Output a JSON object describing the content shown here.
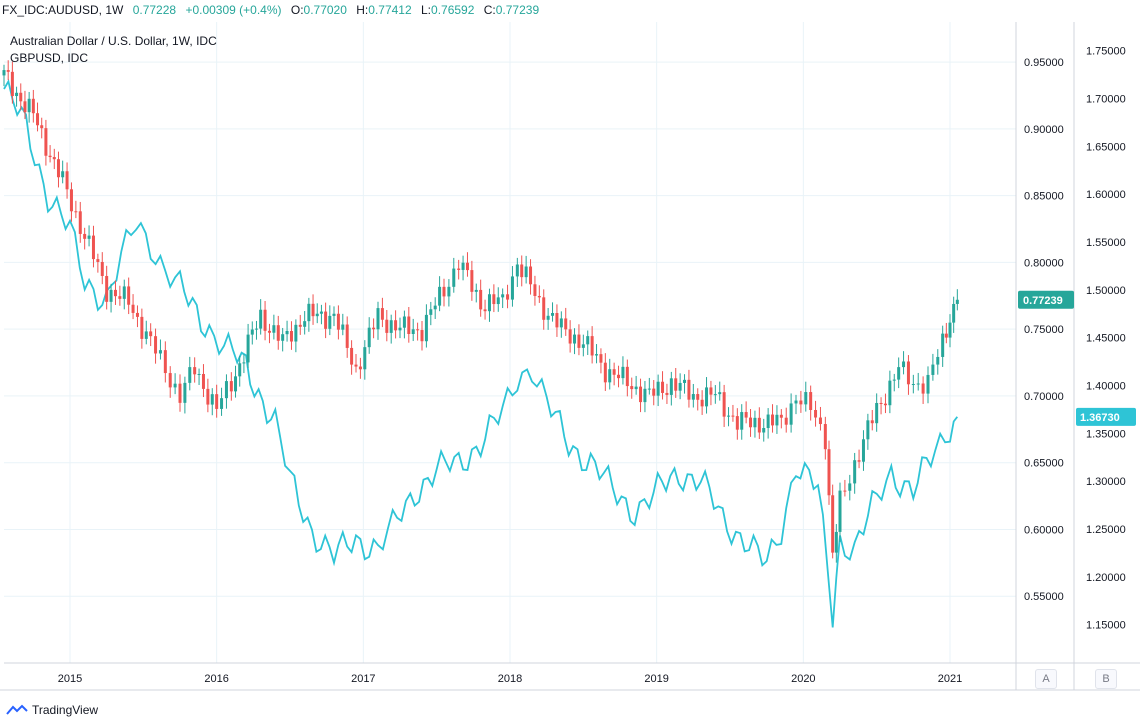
{
  "header": {
    "symbol": "FX_IDC:AUDUSD, 1W",
    "last": "0.77228",
    "change": "+0.00309 (+0.4%)",
    "o_label": "O:",
    "o": "0.77020",
    "h_label": "H:",
    "h": "0.77412",
    "l_label": "L:",
    "l": "0.76592",
    "c_label": "C:",
    "c": "0.77239"
  },
  "legend": {
    "main": "Australian Dollar / U.S. Dollar, 1W, IDC",
    "compare": "GBPUSD, IDC"
  },
  "footer": {
    "brand": "TradingView",
    "scale_a": "A",
    "scale_b": "B"
  },
  "colors": {
    "up": "#26a69a",
    "down": "#ef5350",
    "compare": "#2ec4d6",
    "grid": "#e9f3f8",
    "badge_main": "#26a69a",
    "badge_compare": "#2ec4d6"
  },
  "chart_data": {
    "type": "candlestick+line",
    "title": "Australian Dollar / U.S. Dollar, 1W, IDC",
    "x_range": [
      2014.55,
      2021.45
    ],
    "x_ticks": [
      "2015",
      "2016",
      "2017",
      "2018",
      "2019",
      "2020",
      "2021"
    ],
    "y_left_range": [
      0.5,
      0.98
    ],
    "y_left_ticks": [
      "0.95000",
      "0.90000",
      "0.85000",
      "0.80000",
      "0.75000",
      "0.70000",
      "0.65000",
      "0.60000",
      "0.55000"
    ],
    "y_right_range": [
      1.11,
      1.78
    ],
    "y_right_ticks": [
      "1.75000",
      "1.70000",
      "1.65000",
      "1.60000",
      "1.55000",
      "1.50000",
      "1.45000",
      "1.40000",
      "1.35000",
      "1.30000",
      "1.25000",
      "1.20000",
      "1.15000"
    ],
    "series": [
      {
        "name": "AUDUSD",
        "axis": "left",
        "style": "candles",
        "last_label": "0.77239",
        "x": [
          2014.55,
          2014.75,
          2014.95,
          2015.1,
          2015.25,
          2015.4,
          2015.55,
          2015.65,
          2015.75,
          2015.85,
          2016.0,
          2016.1,
          2016.3,
          2016.45,
          2016.6,
          2016.8,
          2016.95,
          2017.1,
          2017.25,
          2017.4,
          2017.55,
          2017.65,
          2017.8,
          2017.95,
          2018.05,
          2018.2,
          2018.35,
          2018.5,
          2018.65,
          2018.8,
          2018.95,
          2019.1,
          2019.25,
          2019.4,
          2019.55,
          2019.7,
          2019.85,
          2019.95,
          2020.05,
          2020.15,
          2020.2,
          2020.25,
          2020.35,
          2020.5,
          2020.65,
          2020.75,
          2020.85,
          2020.95,
          2021.0,
          2021.05
        ],
        "values": [
          0.94,
          0.91,
          0.86,
          0.82,
          0.78,
          0.77,
          0.74,
          0.72,
          0.7,
          0.72,
          0.69,
          0.71,
          0.76,
          0.74,
          0.76,
          0.76,
          0.72,
          0.76,
          0.75,
          0.75,
          0.78,
          0.8,
          0.77,
          0.77,
          0.8,
          0.77,
          0.75,
          0.74,
          0.72,
          0.71,
          0.7,
          0.71,
          0.7,
          0.7,
          0.68,
          0.68,
          0.68,
          0.7,
          0.69,
          0.67,
          0.58,
          0.62,
          0.65,
          0.69,
          0.72,
          0.71,
          0.71,
          0.74,
          0.76,
          0.772
        ]
      },
      {
        "name": "GBPUSD",
        "axis": "right",
        "style": "line",
        "last_label": "1.36730",
        "x": [
          2014.55,
          2014.7,
          2014.85,
          2015.0,
          2015.1,
          2015.25,
          2015.35,
          2015.45,
          2015.55,
          2015.65,
          2015.75,
          2015.95,
          2016.05,
          2016.2,
          2016.4,
          2016.5,
          2016.65,
          2016.8,
          2016.95,
          2017.1,
          2017.2,
          2017.35,
          2017.5,
          2017.65,
          2017.8,
          2017.95,
          2018.05,
          2018.15,
          2018.25,
          2018.4,
          2018.55,
          2018.7,
          2018.85,
          2018.95,
          2019.15,
          2019.3,
          2019.45,
          2019.6,
          2019.75,
          2019.85,
          2019.95,
          2020.1,
          2020.2,
          2020.25,
          2020.35,
          2020.5,
          2020.6,
          2020.75,
          2020.9,
          2021.0,
          2021.05
        ],
        "values": [
          1.71,
          1.67,
          1.6,
          1.56,
          1.51,
          1.49,
          1.53,
          1.57,
          1.55,
          1.52,
          1.5,
          1.46,
          1.44,
          1.42,
          1.36,
          1.3,
          1.25,
          1.22,
          1.24,
          1.23,
          1.25,
          1.29,
          1.31,
          1.32,
          1.34,
          1.37,
          1.41,
          1.42,
          1.38,
          1.34,
          1.32,
          1.29,
          1.27,
          1.28,
          1.31,
          1.3,
          1.26,
          1.24,
          1.21,
          1.25,
          1.32,
          1.29,
          1.16,
          1.24,
          1.23,
          1.28,
          1.31,
          1.29,
          1.33,
          1.36,
          1.3673
        ]
      }
    ]
  }
}
